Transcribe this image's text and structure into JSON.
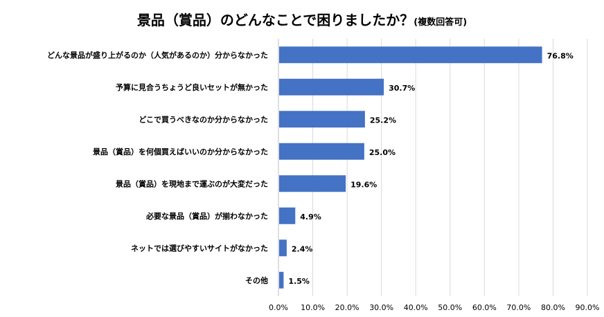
{
  "chart_data": {
    "type": "bar",
    "orientation": "horizontal",
    "title": "景品（賞品）のどんなことで困りましたか？",
    "subtitle": "(複数回答可)",
    "categories": [
      "どんな景品が盛り上がるのか（人気があるのか）分からなかった",
      "予算に見合うちょうど良いセットが無かった",
      "どこで買うべきなのか分からなかった",
      "景品（賞品）を何個買えばいいのか分からなかった",
      "景品（賞品）を現地まで運ぶのが大変だった",
      "必要な景品（賞品）が揃わなかった",
      "ネットでは選びやすいサイトがなかった",
      "その他"
    ],
    "values": [
      76.8,
      30.7,
      25.2,
      25.0,
      19.6,
      4.9,
      2.4,
      1.5
    ],
    "value_labels": [
      "76.8%",
      "30.7%",
      "25.2%",
      "25.0%",
      "19.6%",
      "4.9%",
      "2.4%",
      "1.5%"
    ],
    "xlim": [
      0,
      90
    ],
    "ticks": [
      "0.0%",
      "10.0%",
      "20.0%",
      "30.0%",
      "40.0%",
      "50.0%",
      "60.0%",
      "70.0%",
      "80.0%",
      "90.0%"
    ],
    "grid": true,
    "legend": "none",
    "bar_color": "#4472c4"
  }
}
